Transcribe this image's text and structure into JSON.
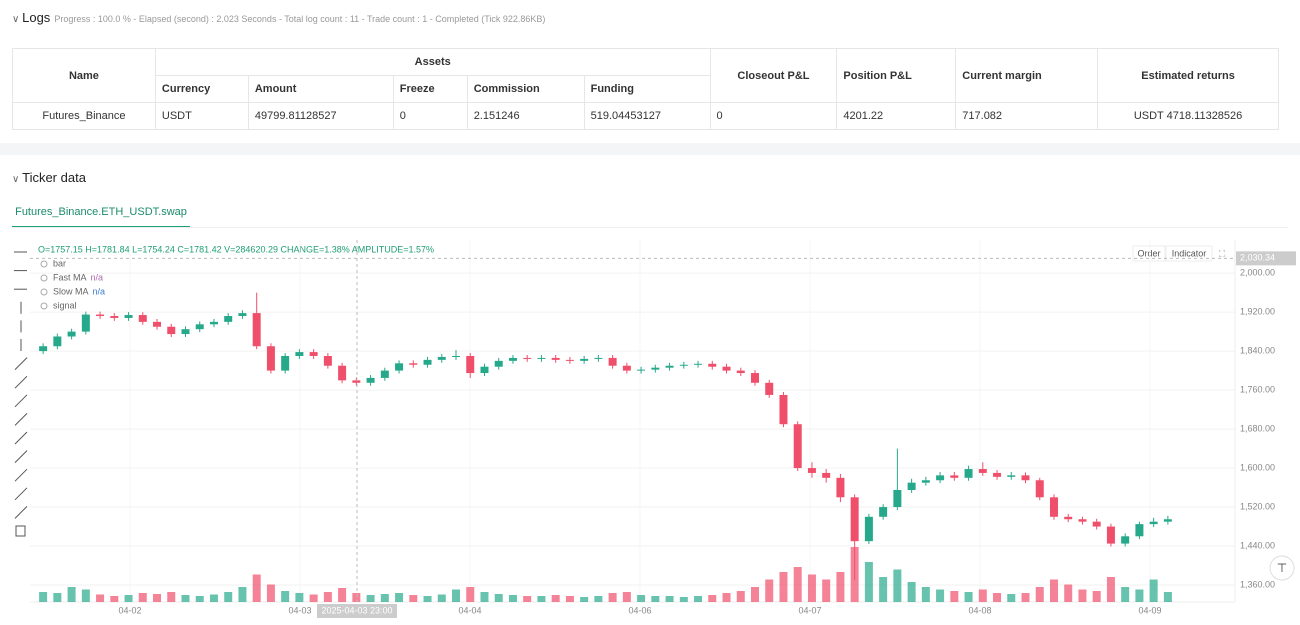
{
  "logs": {
    "title": "Logs",
    "progress": "Progress : 100.0 % - Elapsed (second) : 2.023 Seconds - Total log count : 11 - Trade count : 1 - Completed (Tick 922.86KB)",
    "columns": [
      "Name",
      "Assets",
      "Closeout P&L",
      "Position P&L",
      "Current margin",
      "Estimated returns"
    ],
    "subcolumns": [
      "Currency",
      "Amount",
      "Freeze",
      "Commission",
      "Funding"
    ],
    "row": [
      "Futures_Binance",
      "USDT",
      "49799.81128527",
      "0",
      "2.151246",
      "519.04453127",
      "0",
      "4201.22",
      "717.082",
      "USDT 4718.11328526"
    ]
  },
  "ticker": {
    "title": "Ticker data",
    "tab": "Futures_Binance.ETH_USDT.swap",
    "buttons": [
      "Order",
      "Indicator"
    ]
  },
  "chart_data": {
    "type": "candlestick",
    "info": "O=1757.15 H=1781.84 L=1754.24 C=1781.42 V=284620.29 CHANGE=1.38% AMPLITUDE=1.57%",
    "legend": [
      {
        "name": "bar"
      },
      {
        "name": "Fast MA",
        "value": "n/a"
      },
      {
        "name": "Slow MA",
        "value": "n/a"
      },
      {
        "name": "signal"
      }
    ],
    "up_color": "#26a98b",
    "down_color": "#ef4f6b",
    "open": [
      1840,
      1850,
      1870,
      1880,
      1915,
      1912,
      1908,
      1914,
      1900,
      1890,
      1875,
      1885,
      1895,
      1900,
      1912,
      1918,
      1850,
      1800,
      1830,
      1838,
      1830,
      1810,
      1780,
      1775,
      1785,
      1800,
      1815,
      1812,
      1822,
      1828,
      1830,
      1795,
      1808,
      1820,
      1826,
      1824,
      1826,
      1822,
      1820,
      1824,
      1826,
      1810,
      1800,
      1802,
      1806,
      1810,
      1812,
      1814,
      1808,
      1800,
      1795,
      1775,
      1750,
      1690,
      1600,
      1590,
      1580,
      1540,
      1450,
      1500,
      1520,
      1555,
      1570,
      1575,
      1585,
      1580,
      1598,
      1590,
      1582,
      1585,
      1575,
      1540,
      1500,
      1495,
      1490,
      1480,
      1445,
      1460,
      1485,
      1490
    ],
    "high": [
      1856,
      1876,
      1886,
      1921,
      1921,
      1918,
      1920,
      1920,
      1906,
      1896,
      1891,
      1901,
      1906,
      1918,
      1924,
      1960,
      1856,
      1836,
      1844,
      1844,
      1836,
      1816,
      1786,
      1791,
      1806,
      1821,
      1821,
      1828,
      1834,
      1842,
      1836,
      1814,
      1826,
      1832,
      1832,
      1832,
      1832,
      1828,
      1830,
      1832,
      1832,
      1816,
      1808,
      1812,
      1816,
      1818,
      1820,
      1820,
      1814,
      1806,
      1801,
      1781,
      1756,
      1696,
      1612,
      1598,
      1588,
      1546,
      1506,
      1526,
      1640,
      1578,
      1582,
      1592,
      1592,
      1605,
      1612,
      1596,
      1592,
      1591,
      1580,
      1546,
      1506,
      1500,
      1496,
      1486,
      1466,
      1490,
      1498,
      1502
    ],
    "low": [
      1834,
      1844,
      1864,
      1874,
      1906,
      1902,
      1902,
      1894,
      1884,
      1869,
      1869,
      1879,
      1889,
      1894,
      1906,
      1844,
      1794,
      1794,
      1824,
      1824,
      1804,
      1774,
      1769,
      1769,
      1779,
      1794,
      1806,
      1806,
      1816,
      1822,
      1785,
      1789,
      1802,
      1814,
      1818,
      1818,
      1816,
      1814,
      1814,
      1818,
      1804,
      1794,
      1794,
      1796,
      1800,
      1804,
      1806,
      1802,
      1794,
      1789,
      1769,
      1744,
      1684,
      1594,
      1580,
      1570,
      1530,
      1370,
      1444,
      1494,
      1514,
      1549,
      1564,
      1569,
      1574,
      1574,
      1584,
      1576,
      1576,
      1569,
      1534,
      1494,
      1489,
      1484,
      1474,
      1439,
      1439,
      1454,
      1479,
      1484
    ],
    "close": [
      1850,
      1870,
      1880,
      1915,
      1912,
      1908,
      1914,
      1900,
      1890,
      1875,
      1885,
      1895,
      1900,
      1912,
      1918,
      1850,
      1800,
      1830,
      1838,
      1830,
      1810,
      1780,
      1775,
      1785,
      1800,
      1815,
      1812,
      1822,
      1828,
      1830,
      1795,
      1808,
      1820,
      1826,
      1824,
      1826,
      1822,
      1820,
      1824,
      1826,
      1810,
      1800,
      1802,
      1806,
      1810,
      1812,
      1814,
      1808,
      1800,
      1795,
      1775,
      1750,
      1690,
      1600,
      1590,
      1580,
      1540,
      1450,
      1500,
      1520,
      1555,
      1570,
      1575,
      1585,
      1580,
      1598,
      1590,
      1582,
      1585,
      1575,
      1540,
      1500,
      1495,
      1490,
      1480,
      1445,
      1460,
      1485,
      1490,
      1495
    ],
    "volume": [
      20,
      18,
      30,
      25,
      15,
      12,
      14,
      18,
      16,
      20,
      14,
      12,
      15,
      20,
      30,
      55,
      35,
      22,
      18,
      15,
      20,
      28,
      18,
      14,
      16,
      18,
      14,
      12,
      15,
      25,
      30,
      20,
      16,
      14,
      12,
      12,
      14,
      12,
      10,
      12,
      18,
      20,
      14,
      12,
      12,
      10,
      12,
      14,
      18,
      22,
      30,
      45,
      60,
      70,
      55,
      45,
      60,
      110,
      80,
      50,
      65,
      40,
      30,
      25,
      22,
      20,
      25,
      18,
      16,
      18,
      30,
      45,
      35,
      25,
      22,
      50,
      30,
      25,
      45,
      20
    ],
    "ylim": [
      1319,
      2068
    ],
    "yticks": [
      {
        "value": 1360,
        "label": "1,360.00"
      },
      {
        "value": 1440,
        "label": "1,440.00"
      },
      {
        "value": 1520,
        "label": "1,520.00"
      },
      {
        "value": 1600,
        "label": "1,600.00"
      },
      {
        "value": 1680,
        "label": "1,680.00"
      },
      {
        "value": 1760,
        "label": "1,760.00"
      },
      {
        "value": 1840,
        "label": "1,840.00"
      },
      {
        "value": 1920,
        "label": "1,920.00"
      },
      {
        "value": 2000,
        "label": "2,000.00"
      }
    ],
    "xticks": [
      "04-02",
      "04-03",
      "04-04",
      "04-06",
      "04-07",
      "04-08",
      "04-09"
    ],
    "crosshair": {
      "x_label": "2025-04-03 23:00",
      "price": {
        "value": 2030.34,
        "label": "2,030.34"
      }
    },
    "grid": true
  }
}
